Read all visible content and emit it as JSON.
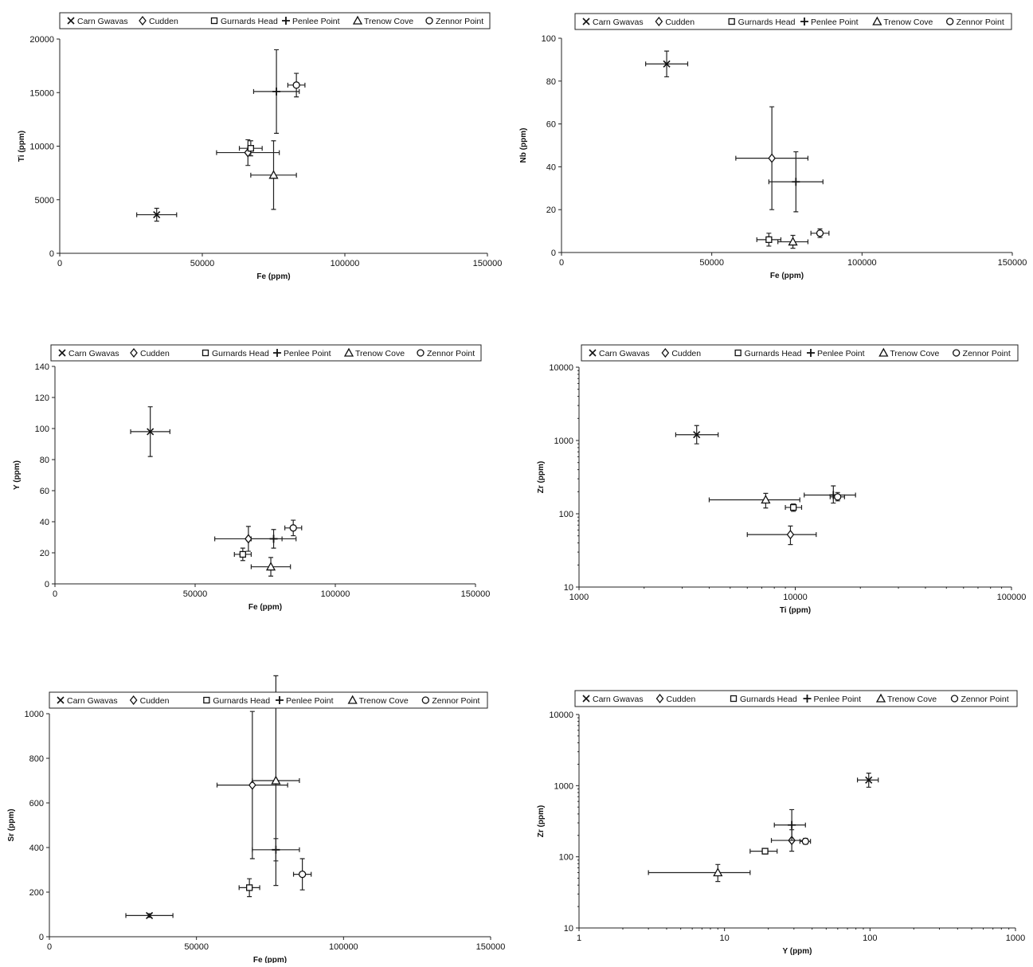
{
  "figure": {
    "legend_entries": [
      {
        "name": "Carn Gwavas",
        "marker": "x"
      },
      {
        "name": "Cudden",
        "marker": "diamond"
      },
      {
        "name": "Gurnards Head",
        "marker": "square"
      },
      {
        "name": "Penlee Point",
        "marker": "plus"
      },
      {
        "name": "Trenow Cove",
        "marker": "triangle"
      },
      {
        "name": "Zennor Point",
        "marker": "circle"
      }
    ]
  },
  "chart_data": [
    {
      "type": "scatter",
      "xlabel": "Fe (ppm)",
      "ylabel": "Ti (ppm)",
      "x_scale": "linear",
      "y_scale": "linear",
      "xlim": [
        0,
        150000
      ],
      "ylim": [
        0,
        20000
      ],
      "xticks": [
        0,
        50000,
        100000,
        150000
      ],
      "xtick_labels": [
        "0",
        "50000",
        "100000",
        "150000"
      ],
      "yticks": [
        0,
        5000,
        10000,
        15000,
        20000
      ],
      "ytick_labels": [
        "0",
        "5000",
        "10000",
        "15000",
        "20000"
      ],
      "legend": "top",
      "series": [
        {
          "name": "Carn Gwavas",
          "marker": "x",
          "points": [
            {
              "x": 34000,
              "y": 3600,
              "xe": 7000,
              "ye": 600
            }
          ]
        },
        {
          "name": "Cudden",
          "marker": "diamond",
          "points": [
            {
              "x": 66000,
              "y": 9400,
              "xe": 11000,
              "ye": 1200
            }
          ]
        },
        {
          "name": "Gurnards Head",
          "marker": "square",
          "points": [
            {
              "x": 67000,
              "y": 9800,
              "xe": 4000,
              "ye": 700
            }
          ]
        },
        {
          "name": "Penlee Point",
          "marker": "plus",
          "points": [
            {
              "x": 76000,
              "y": 15100,
              "xe": 8000,
              "ye": 3900
            }
          ]
        },
        {
          "name": "Trenow Cove",
          "marker": "triangle",
          "points": [
            {
              "x": 75000,
              "y": 7300,
              "xe": 8000,
              "ye": 3200
            }
          ]
        },
        {
          "name": "Zennor Point",
          "marker": "circle",
          "points": [
            {
              "x": 83000,
              "y": 15700,
              "xe": 3000,
              "ye": 1100
            }
          ]
        }
      ]
    },
    {
      "type": "scatter",
      "xlabel": "Fe (ppm)",
      "ylabel": "Nb (ppm)",
      "x_scale": "linear",
      "y_scale": "linear",
      "xlim": [
        0,
        150000
      ],
      "ylim": [
        0,
        100
      ],
      "xticks": [
        0,
        50000,
        100000,
        150000
      ],
      "xtick_labels": [
        "0",
        "50000",
        "100000",
        "150000"
      ],
      "yticks": [
        0,
        20,
        40,
        60,
        80,
        100
      ],
      "ytick_labels": [
        "0",
        "20",
        "40",
        "60",
        "80",
        "100"
      ],
      "legend": "top",
      "series": [
        {
          "name": "Carn Gwavas",
          "marker": "x",
          "points": [
            {
              "x": 35000,
              "y": 88,
              "xe": 7000,
              "ye": 6
            }
          ]
        },
        {
          "name": "Cudden",
          "marker": "diamond",
          "points": [
            {
              "x": 70000,
              "y": 44,
              "xe": 12000,
              "ye": 24
            }
          ]
        },
        {
          "name": "Gurnards Head",
          "marker": "square",
          "points": [
            {
              "x": 69000,
              "y": 6,
              "xe": 4000,
              "ye": 3
            }
          ]
        },
        {
          "name": "Penlee Point",
          "marker": "plus",
          "points": [
            {
              "x": 78000,
              "y": 33,
              "xe": 9000,
              "ye": 14
            }
          ]
        },
        {
          "name": "Trenow Cove",
          "marker": "triangle",
          "points": [
            {
              "x": 77000,
              "y": 5,
              "xe": 5000,
              "ye": 3
            }
          ]
        },
        {
          "name": "Zennor Point",
          "marker": "circle",
          "points": [
            {
              "x": 86000,
              "y": 9,
              "xe": 3000,
              "ye": 2
            }
          ]
        }
      ]
    },
    {
      "type": "scatter",
      "xlabel": "Fe (ppm)",
      "ylabel": "Y (ppm)",
      "x_scale": "linear",
      "y_scale": "linear",
      "xlim": [
        0,
        150000
      ],
      "ylim": [
        0,
        140
      ],
      "xticks": [
        0,
        50000,
        100000,
        150000
      ],
      "xtick_labels": [
        "0",
        "50000",
        "100000",
        "150000"
      ],
      "yticks": [
        0,
        20,
        40,
        60,
        80,
        100,
        120,
        140
      ],
      "ytick_labels": [
        "0",
        "20",
        "40",
        "60",
        "80",
        "100",
        "120",
        "140"
      ],
      "legend": "top",
      "series": [
        {
          "name": "Carn Gwavas",
          "marker": "x",
          "points": [
            {
              "x": 34000,
              "y": 98,
              "xe": 7000,
              "ye": 16
            }
          ]
        },
        {
          "name": "Cudden",
          "marker": "diamond",
          "points": [
            {
              "x": 69000,
              "y": 29,
              "xe": 12000,
              "ye": 8
            }
          ]
        },
        {
          "name": "Gurnards Head",
          "marker": "square",
          "points": [
            {
              "x": 67000,
              "y": 19,
              "xe": 3000,
              "ye": 4
            }
          ]
        },
        {
          "name": "Penlee Point",
          "marker": "plus",
          "points": [
            {
              "x": 78000,
              "y": 29,
              "xe": 8000,
              "ye": 6
            }
          ]
        },
        {
          "name": "Trenow Cove",
          "marker": "triangle",
          "points": [
            {
              "x": 77000,
              "y": 11,
              "xe": 7000,
              "ye": 6
            }
          ]
        },
        {
          "name": "Zennor Point",
          "marker": "circle",
          "points": [
            {
              "x": 85000,
              "y": 36,
              "xe": 3000,
              "ye": 5
            }
          ]
        }
      ]
    },
    {
      "type": "scatter",
      "xlabel": "Ti (ppm)",
      "ylabel": "Zr (ppm)",
      "x_scale": "log",
      "y_scale": "log",
      "xlim": [
        1000,
        100000
      ],
      "ylim": [
        10,
        10000
      ],
      "xticks": [
        1000,
        10000,
        100000
      ],
      "xtick_labels": [
        "1000",
        "10000",
        "100000"
      ],
      "yticks": [
        10,
        100,
        1000,
        10000
      ],
      "ytick_labels": [
        "10",
        "100",
        "1000",
        "10000"
      ],
      "legend": "top",
      "series": [
        {
          "name": "Carn Gwavas",
          "marker": "x",
          "points": [
            {
              "x": 3500,
              "y": 1200,
              "xlo": 2800,
              "xhi": 4400,
              "ylo": 900,
              "yhi": 1600
            }
          ]
        },
        {
          "name": "Cudden",
          "marker": "diamond",
          "points": [
            {
              "x": 9500,
              "y": 52,
              "xlo": 6000,
              "xhi": 12500,
              "ylo": 38,
              "yhi": 68
            }
          ]
        },
        {
          "name": "Gurnards Head",
          "marker": "square",
          "points": [
            {
              "x": 9800,
              "y": 122,
              "xlo": 9000,
              "xhi": 10700,
              "ylo": 108,
              "yhi": 136
            }
          ]
        },
        {
          "name": "Penlee Point",
          "marker": "plus",
          "points": [
            {
              "x": 15000,
              "y": 180,
              "xlo": 11000,
              "xhi": 19000,
              "ylo": 140,
              "yhi": 240
            }
          ]
        },
        {
          "name": "Trenow Cove",
          "marker": "triangle",
          "points": [
            {
              "x": 7300,
              "y": 155,
              "xlo": 4000,
              "xhi": 10500,
              "ylo": 120,
              "yhi": 190
            }
          ]
        },
        {
          "name": "Zennor Point",
          "marker": "circle",
          "points": [
            {
              "x": 15700,
              "y": 170,
              "xlo": 14500,
              "xhi": 16900,
              "ylo": 150,
              "yhi": 195
            }
          ]
        }
      ]
    },
    {
      "type": "scatter",
      "xlabel": "Fe (ppm)",
      "ylabel": "Sr (ppm)",
      "x_scale": "linear",
      "y_scale": "linear",
      "xlim": [
        0,
        150000
      ],
      "ylim": [
        0,
        1000
      ],
      "xticks": [
        0,
        50000,
        100000,
        150000
      ],
      "xtick_labels": [
        "0",
        "50000",
        "100000",
        "150000"
      ],
      "yticks": [
        0,
        200,
        400,
        600,
        800,
        1000
      ],
      "ytick_labels": [
        "0",
        "200",
        "400",
        "600",
        "800",
        "1000"
      ],
      "legend": "top",
      "series": [
        {
          "name": "Carn Gwavas",
          "marker": "x",
          "points": [
            {
              "x": 34000,
              "y": 95,
              "xe": 8000,
              "ye": 8
            }
          ]
        },
        {
          "name": "Cudden",
          "marker": "diamond",
          "points": [
            {
              "x": 69000,
              "y": 680,
              "xe": 12000,
              "ye": 330
            }
          ]
        },
        {
          "name": "Gurnards Head",
          "marker": "square",
          "points": [
            {
              "x": 68000,
              "y": 220,
              "xe": 3500,
              "ye": 40
            }
          ]
        },
        {
          "name": "Penlee Point",
          "marker": "plus",
          "points": [
            {
              "x": 77000,
              "y": 390,
              "xe": 8000,
              "ye": 50
            }
          ]
        },
        {
          "name": "Trenow Cove",
          "marker": "triangle",
          "points": [
            {
              "x": 77000,
              "y": 700,
              "xe": 8000,
              "ye": 470
            }
          ]
        },
        {
          "name": "Zennor Point",
          "marker": "circle",
          "points": [
            {
              "x": 86000,
              "y": 280,
              "xe": 3000,
              "ye": 70
            }
          ]
        }
      ]
    },
    {
      "type": "scatter",
      "xlabel": "Y (ppm)",
      "ylabel": "Zr (ppm)",
      "x_scale": "log",
      "y_scale": "log",
      "xlim": [
        1,
        1000
      ],
      "ylim": [
        10,
        10000
      ],
      "xticks": [
        1,
        10,
        100,
        1000
      ],
      "xtick_labels": [
        "1",
        "10",
        "100",
        "1000"
      ],
      "yticks": [
        10,
        100,
        1000,
        10000
      ],
      "ytick_labels": [
        "10",
        "100",
        "1000",
        "10000"
      ],
      "legend": "top",
      "series": [
        {
          "name": "Carn Gwavas",
          "marker": "x",
          "points": [
            {
              "x": 98,
              "y": 1200,
              "xlo": 82,
              "xhi": 114,
              "ylo": 950,
              "yhi": 1500
            }
          ]
        },
        {
          "name": "Cudden",
          "marker": "diamond",
          "points": [
            {
              "x": 29,
              "y": 170,
              "xlo": 21,
              "xhi": 37,
              "ylo": 120,
              "yhi": 240
            }
          ]
        },
        {
          "name": "Gurnards Head",
          "marker": "square",
          "points": [
            {
              "x": 19,
              "y": 120,
              "xlo": 15,
              "xhi": 23,
              "ylo": 110,
              "yhi": 130
            }
          ]
        },
        {
          "name": "Penlee Point",
          "marker": "plus",
          "points": [
            {
              "x": 29,
              "y": 280,
              "xlo": 22,
              "xhi": 36,
              "ylo": 170,
              "yhi": 460
            }
          ]
        },
        {
          "name": "Trenow Cove",
          "marker": "triangle",
          "points": [
            {
              "x": 9,
              "y": 60,
              "xlo": 3,
              "xhi": 15,
              "ylo": 45,
              "yhi": 78
            }
          ]
        },
        {
          "name": "Zennor Point",
          "marker": "circle",
          "points": [
            {
              "x": 36,
              "y": 165,
              "xlo": 33,
              "xhi": 39,
              "ylo": 150,
              "yhi": 182
            }
          ]
        }
      ]
    }
  ]
}
